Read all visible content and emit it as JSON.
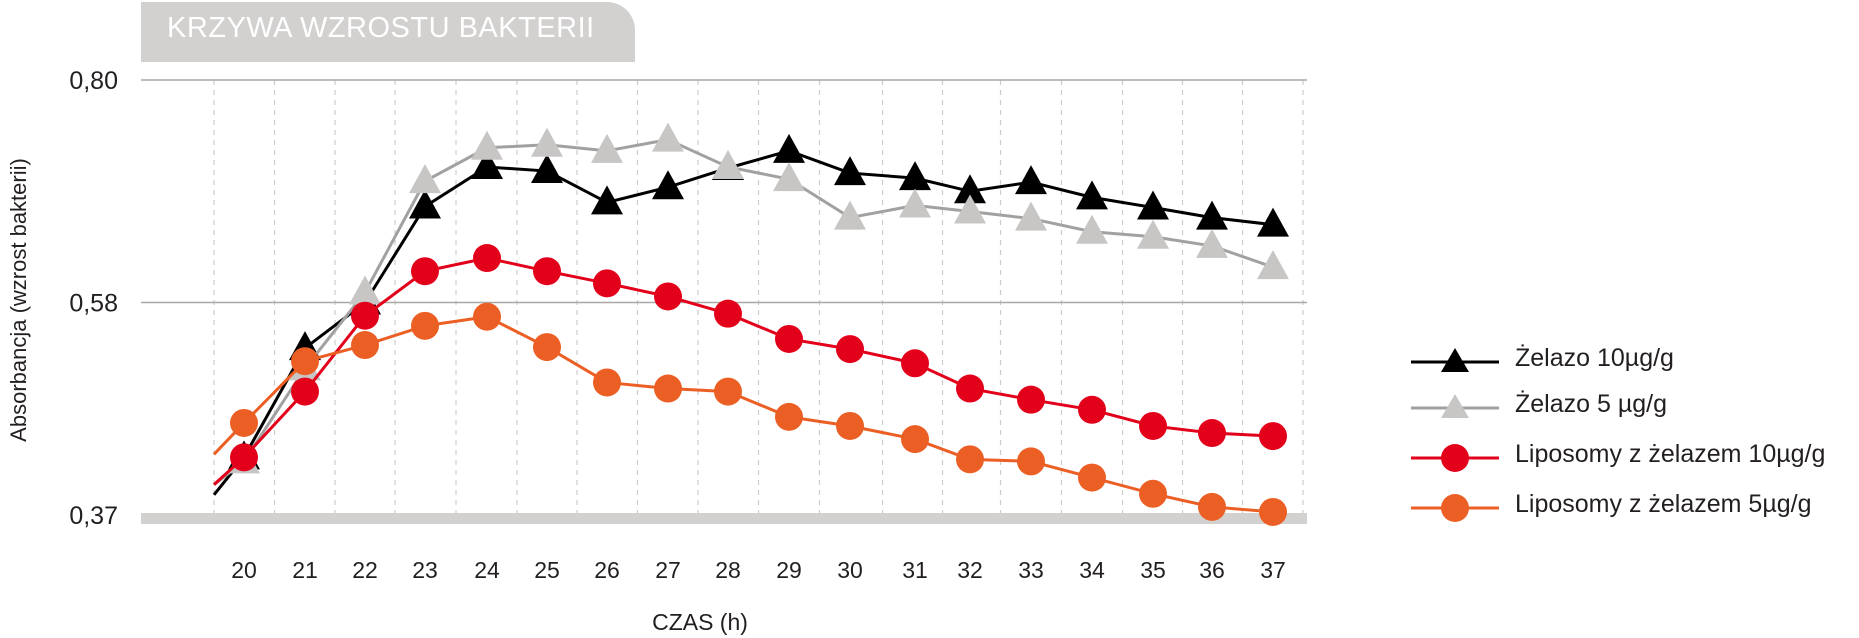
{
  "chart_data": {
    "type": "line",
    "title": "KRZYWA WZROSTU BAKTERII",
    "xlabel": "CZAS (h)",
    "ylabel": "Absorbancja (wzrost bakterii)",
    "y_tick_labels": [
      "0,80",
      "0,58",
      "0,37"
    ],
    "ylim": [
      0.37,
      0.8
    ],
    "categories": [
      "20",
      "21",
      "22",
      "23",
      "24",
      "25",
      "26",
      "27",
      "28",
      "29",
      "30",
      "31",
      "32",
      "33",
      "34",
      "35",
      "36",
      "37"
    ],
    "grid": "horizontal solid lines at labeled ticks, vertical dashed lines between categories",
    "legend_position": "right",
    "series": [
      {
        "name": "Żelazo 10µg/g",
        "marker": "triangle",
        "color": "#000000",
        "values": [
          0.427,
          0.535,
          0.58,
          0.675,
          0.714,
          0.71,
          0.679,
          0.694,
          0.713,
          0.73,
          0.708,
          0.703,
          0.69,
          0.699,
          0.684,
          0.674,
          0.664,
          0.657
        ]
      },
      {
        "name": "Żelazo 5 µg/g",
        "marker": "triangle",
        "color": "#c8c6c5",
        "values": [
          0.423,
          0.515,
          0.59,
          0.7,
          0.733,
          0.736,
          0.73,
          0.741,
          0.714,
          0.702,
          0.664,
          0.676,
          0.67,
          0.663,
          0.65,
          0.645,
          0.636,
          0.615
        ]
      },
      {
        "name": "Liposomy z żelazem 10µg/g",
        "marker": "circle",
        "color": "#e3001b",
        "values": [
          0.427,
          0.492,
          0.567,
          0.611,
          0.624,
          0.611,
          0.599,
          0.586,
          0.569,
          0.544,
          0.534,
          0.52,
          0.495,
          0.484,
          0.474,
          0.458,
          0.451,
          0.448
        ]
      },
      {
        "name": "Liposomy z żelazem 5µg/g",
        "marker": "circle",
        "color": "#ec5f24",
        "values": [
          0.461,
          0.522,
          0.538,
          0.557,
          0.566,
          0.536,
          0.501,
          0.495,
          0.492,
          0.467,
          0.458,
          0.445,
          0.425,
          0.423,
          0.407,
          0.391,
          0.378,
          0.373
        ]
      }
    ]
  }
}
